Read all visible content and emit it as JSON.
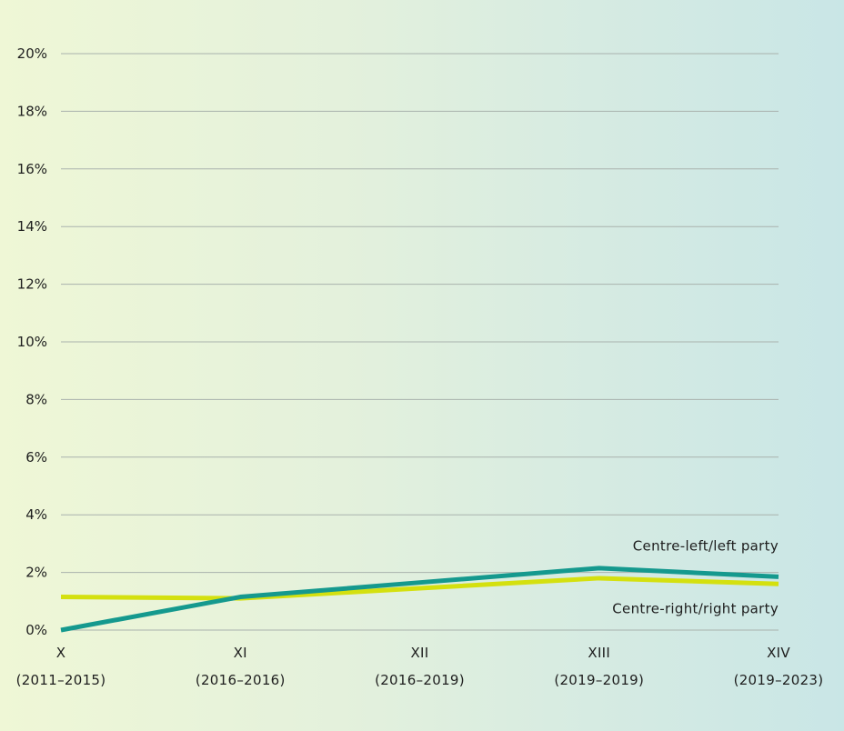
{
  "chart_data": {
    "type": "line",
    "x": [
      "X (2011–2015)",
      "XI (2016–2016)",
      "XII (2016–2019)",
      "XIII (2019–2019)",
      "XIV (2019–2023)"
    ],
    "x_tick_labels": [
      [
        "X",
        "(2011–2015)"
      ],
      [
        "XI",
        "(2016–2016)"
      ],
      [
        "XII",
        "(2016–2019)"
      ],
      [
        "XIII",
        "(2019–2019)"
      ],
      [
        "XIV",
        "(2019–2023)"
      ]
    ],
    "y_tick_labels": [
      "0%",
      "2%",
      "4%",
      "6%",
      "8%",
      "10%",
      "12%",
      "14%",
      "16%",
      "18%",
      "20%"
    ],
    "ylim": [
      0,
      20
    ],
    "grid": true,
    "series": [
      {
        "name": "Centre-left/left party",
        "color": "#15998e",
        "values": [
          0.0,
          1.15,
          1.65,
          2.15,
          1.85
        ]
      },
      {
        "name": "Centre-right/right party",
        "color": "#d4e00f",
        "values": [
          1.15,
          1.1,
          1.45,
          1.8,
          1.6
        ]
      }
    ]
  }
}
